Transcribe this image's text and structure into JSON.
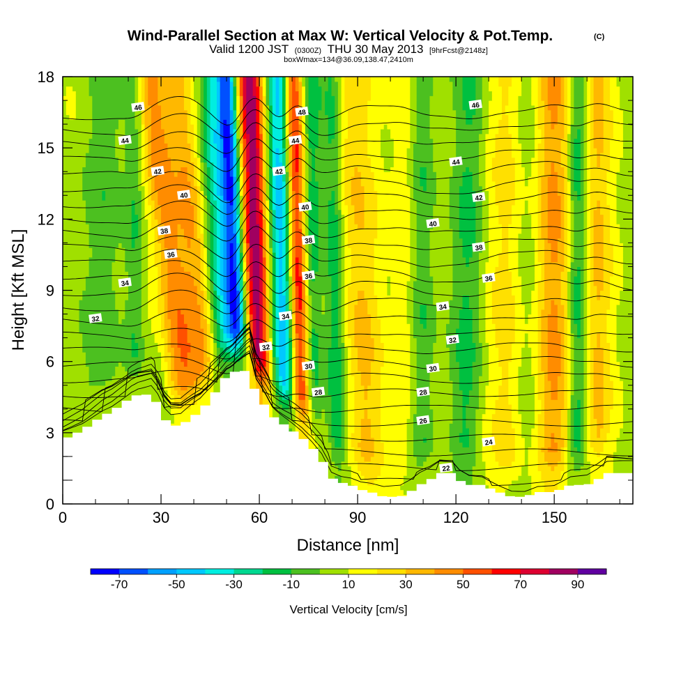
{
  "header": {
    "title": "Wind-Parallel Section at Max W: Vertical Velocity & Pot.Temp.",
    "title_mark": "(C)",
    "valid_prefix": "Valid 1200 JST",
    "valid_utc": "(0300Z)",
    "valid_date": "THU 30 May 2013",
    "forecast_tag": "[9hrFcst@2148z]",
    "box_info": "boxWmax=134@36.09,138.47,2410m"
  },
  "chart_data": {
    "type": "heatmap",
    "xlabel": "Distance [nm]",
    "ylabel": "Height [Kft MSL]",
    "xlim": [
      0,
      174
    ],
    "ylim": [
      0,
      18
    ],
    "xticks": [
      0,
      30,
      60,
      90,
      120,
      150
    ],
    "yticks": [
      0,
      3,
      6,
      9,
      12,
      15,
      18
    ],
    "colorbar": {
      "label": "Vertical Velocity [cm/s]",
      "ticks": [
        -70,
        -50,
        -30,
        -10,
        10,
        30,
        50,
        70,
        90
      ],
      "bins": [
        {
          "min": -80,
          "max": -70,
          "color": "#0000ff"
        },
        {
          "min": -70,
          "max": -60,
          "color": "#0050ff"
        },
        {
          "min": -60,
          "max": -50,
          "color": "#00a0ff"
        },
        {
          "min": -50,
          "max": -40,
          "color": "#00c8ff"
        },
        {
          "min": -40,
          "max": -30,
          "color": "#00eee0"
        },
        {
          "min": -30,
          "max": -20,
          "color": "#00d890"
        },
        {
          "min": -20,
          "max": -10,
          "color": "#00c040"
        },
        {
          "min": -10,
          "max": 0,
          "color": "#4cc020"
        },
        {
          "min": 0,
          "max": 10,
          "color": "#a0e000"
        },
        {
          "min": 10,
          "max": 20,
          "color": "#ffff00"
        },
        {
          "min": 20,
          "max": 30,
          "color": "#ffe000"
        },
        {
          "min": 30,
          "max": 40,
          "color": "#ffb800"
        },
        {
          "min": 40,
          "max": 50,
          "color": "#ff8c00"
        },
        {
          "min": 50,
          "max": 60,
          "color": "#ff5000"
        },
        {
          "min": 60,
          "max": 70,
          "color": "#ff0000"
        },
        {
          "min": 70,
          "max": 80,
          "color": "#dd0030"
        },
        {
          "min": 80,
          "max": 90,
          "color": "#a00060"
        },
        {
          "min": 90,
          "max": 100,
          "color": "#6000a0"
        }
      ]
    },
    "updrafts": [
      {
        "x0": 60,
        "x1": 57,
        "w": 4,
        "amp": 75
      },
      {
        "x0": 73,
        "x1": 70,
        "w": 3,
        "amp": 70
      },
      {
        "x0": 38,
        "x1": 27,
        "w": 5,
        "amp": 40
      },
      {
        "x0": 45,
        "x1": 35,
        "w": 4,
        "amp": 25
      },
      {
        "x0": 93,
        "x1": 87,
        "w": 6,
        "amp": 22
      },
      {
        "x0": 104,
        "x1": 104,
        "w": 4,
        "amp": 14
      },
      {
        "x0": 137,
        "x1": 137,
        "w": 6,
        "amp": 20
      },
      {
        "x0": 150,
        "x1": 150,
        "w": 6,
        "amp": 32
      },
      {
        "x0": 163,
        "x1": 163,
        "w": 4,
        "amp": 22
      }
    ],
    "downdrafts": [
      {
        "x0": 54,
        "x1": 50,
        "w": 3,
        "amp": 70
      },
      {
        "x0": 68,
        "x1": 66,
        "w": 4,
        "amp": 55
      },
      {
        "x0": 50,
        "x1": 45,
        "w": 4,
        "amp": 35
      },
      {
        "x0": 76,
        "x1": 76,
        "w": 3,
        "amp": 30
      },
      {
        "x0": 84,
        "x1": 82,
        "w": 3,
        "amp": 25
      },
      {
        "x0": 110,
        "x1": 110,
        "w": 4,
        "amp": 20
      },
      {
        "x0": 123,
        "x1": 125,
        "w": 5,
        "amp": 18
      },
      {
        "x0": 142,
        "x1": 142,
        "w": 5,
        "amp": 14
      },
      {
        "x0": 157,
        "x1": 157,
        "w": 3,
        "amp": 25
      },
      {
        "x0": 8,
        "x1": 12,
        "w": 8,
        "amp": 12
      },
      {
        "x0": 22,
        "x1": 22,
        "w": 3,
        "amp": 20
      }
    ],
    "terrain": [
      [
        0,
        2.7
      ],
      [
        3,
        2.9
      ],
      [
        6,
        3.1
      ],
      [
        9,
        3.4
      ],
      [
        12,
        3.7
      ],
      [
        15,
        3.9
      ],
      [
        18,
        4.2
      ],
      [
        21,
        4.5
      ],
      [
        23,
        4.6
      ],
      [
        27,
        4.6
      ],
      [
        29,
        4.2
      ],
      [
        31,
        3.6
      ],
      [
        33,
        3.3
      ],
      [
        36,
        3.3
      ],
      [
        39,
        3.6
      ],
      [
        42,
        3.9
      ],
      [
        45,
        4.4
      ],
      [
        48,
        5.0
      ],
      [
        50,
        5.4
      ],
      [
        53,
        5.6
      ],
      [
        57,
        5.6
      ],
      [
        59,
        4.6
      ],
      [
        62,
        4.1
      ],
      [
        64,
        3.7
      ],
      [
        67,
        3.4
      ],
      [
        70,
        3.1
      ],
      [
        73,
        2.8
      ],
      [
        76,
        2.4
      ],
      [
        79,
        1.9
      ],
      [
        82,
        1.1
      ],
      [
        85,
        0.9
      ],
      [
        88,
        0.8
      ],
      [
        91,
        0.6
      ],
      [
        94,
        0.5
      ],
      [
        98,
        0.3
      ],
      [
        103,
        0.3
      ],
      [
        106,
        0.5
      ],
      [
        109,
        0.8
      ],
      [
        112,
        1.0
      ],
      [
        115,
        1.3
      ],
      [
        119,
        1.3
      ],
      [
        121,
        1.0
      ],
      [
        124,
        0.8
      ],
      [
        128,
        0.8
      ],
      [
        133,
        0.5
      ],
      [
        137,
        0.3
      ],
      [
        141,
        0.3
      ],
      [
        145,
        0.5
      ],
      [
        150,
        0.5
      ],
      [
        155,
        0.8
      ],
      [
        160,
        0.8
      ],
      [
        163,
        1.0
      ],
      [
        166,
        1.3
      ],
      [
        170,
        1.3
      ],
      [
        174,
        1.3
      ]
    ],
    "theta_levels": [
      22,
      23,
      24,
      25,
      26,
      27,
      28,
      29,
      30,
      31,
      32,
      33,
      34,
      35,
      36,
      37,
      38,
      39,
      40,
      41,
      42,
      43,
      44,
      45,
      46,
      47,
      48
    ],
    "contour_labels": [
      {
        "text": "46",
        "x": 23,
        "y": 16.7
      },
      {
        "text": "44",
        "x": 19,
        "y": 15.3
      },
      {
        "text": "42",
        "x": 29,
        "y": 14.0
      },
      {
        "text": "40",
        "x": 37,
        "y": 13.0
      },
      {
        "text": "38",
        "x": 31,
        "y": 11.5
      },
      {
        "text": "36",
        "x": 33,
        "y": 10.5
      },
      {
        "text": "34",
        "x": 19,
        "y": 9.3
      },
      {
        "text": "32",
        "x": 10,
        "y": 7.8
      },
      {
        "text": "48",
        "x": 73,
        "y": 16.5
      },
      {
        "text": "44",
        "x": 71,
        "y": 15.3
      },
      {
        "text": "42",
        "x": 66,
        "y": 14.0
      },
      {
        "text": "40",
        "x": 74,
        "y": 12.5
      },
      {
        "text": "38",
        "x": 75,
        "y": 11.1
      },
      {
        "text": "36",
        "x": 75,
        "y": 9.6
      },
      {
        "text": "34",
        "x": 68,
        "y": 7.9
      },
      {
        "text": "32",
        "x": 62,
        "y": 6.6
      },
      {
        "text": "30",
        "x": 75,
        "y": 5.8
      },
      {
        "text": "28",
        "x": 78,
        "y": 4.7
      },
      {
        "text": "46",
        "x": 126,
        "y": 16.8
      },
      {
        "text": "44",
        "x": 120,
        "y": 14.4
      },
      {
        "text": "42",
        "x": 127,
        "y": 12.9
      },
      {
        "text": "40",
        "x": 113,
        "y": 11.8
      },
      {
        "text": "38",
        "x": 127,
        "y": 10.8
      },
      {
        "text": "36",
        "x": 130,
        "y": 9.5
      },
      {
        "text": "34",
        "x": 116,
        "y": 8.3
      },
      {
        "text": "32",
        "x": 119,
        "y": 6.9
      },
      {
        "text": "30",
        "x": 113,
        "y": 5.7
      },
      {
        "text": "28",
        "x": 110,
        "y": 4.7
      },
      {
        "text": "26",
        "x": 110,
        "y": 3.5
      },
      {
        "text": "24",
        "x": 130,
        "y": 2.6
      },
      {
        "text": "22",
        "x": 117,
        "y": 1.5
      }
    ]
  }
}
